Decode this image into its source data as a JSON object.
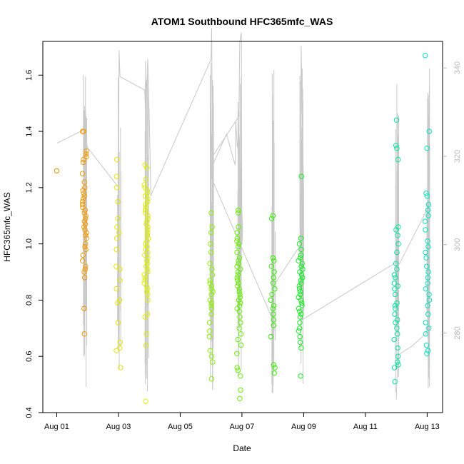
{
  "chart_data": {
    "type": "scatter",
    "title": "ATOM1 Southbound HFC365mfc_WAS",
    "xlabel": "Date",
    "ylabel": "HFC365mfc_WAS",
    "x_tick_labels": [
      "Aug 01",
      "Aug 03",
      "Aug 05",
      "Aug 07",
      "Aug 09",
      "Aug 11",
      "Aug 13"
    ],
    "x_tick_days": [
      1,
      3,
      5,
      7,
      9,
      11,
      13
    ],
    "xlim_days": [
      0.55,
      13.5
    ],
    "ylim": [
      0.4,
      1.72
    ],
    "y_ticks": [
      0.4,
      0.6,
      0.8,
      1.0,
      1.2,
      1.4,
      1.6
    ],
    "y_tick_labels": [
      "0.4",
      "0.6",
      "0.8",
      "1.0",
      "1.2",
      "1.4",
      "1.6"
    ],
    "y2lim": [
      262,
      346
    ],
    "y2_ticks": [
      280,
      300,
      320,
      340
    ],
    "y2_tick_labels": [
      "280",
      "300",
      "320",
      "340"
    ],
    "y2_color": "#bbbbbb",
    "line_color": "#c8c8c8",
    "grid": false,
    "legend": "none",
    "color_scale": "date, orange to cyan",
    "point_groups": [
      {
        "center_day": 1.0,
        "color": "#f08c00",
        "values": [
          1.26
        ]
      },
      {
        "center_day": 1.9,
        "color": "#f59a00",
        "values": [
          1.4,
          1.4,
          1.33,
          1.32,
          1.31,
          1.3,
          1.29,
          1.25,
          1.22,
          1.2,
          1.19,
          1.18,
          1.17,
          1.16,
          1.15,
          1.14,
          1.13,
          1.12,
          1.11,
          1.1,
          1.09,
          1.08,
          1.07,
          1.06,
          1.05,
          1.04,
          1.03,
          1.02,
          1.0,
          0.99,
          0.98,
          0.96,
          0.94,
          0.92,
          0.91,
          0.9,
          0.88,
          0.77,
          0.68
        ]
      },
      {
        "center_day": 3.0,
        "color": "#e6e600",
        "values": [
          1.3,
          1.24,
          1.2,
          1.15,
          1.09,
          1.06,
          1.04,
          1.02,
          0.98,
          0.92,
          0.91,
          0.87,
          0.84,
          0.8,
          0.79,
          0.72,
          0.65,
          0.63,
          0.62,
          0.56
        ]
      },
      {
        "center_day": 3.9,
        "color": "#e0f000",
        "values": [
          1.28,
          1.27,
          1.23,
          1.21,
          1.2,
          1.19,
          1.18,
          1.17,
          1.16,
          1.15,
          1.14,
          1.13,
          1.12,
          1.11,
          1.1,
          1.09,
          1.08,
          1.07,
          1.06,
          1.05,
          1.04,
          1.03,
          1.02,
          1.01,
          1.0,
          0.99,
          0.98,
          0.97,
          0.96,
          0.95,
          0.94,
          0.93,
          0.92,
          0.91,
          0.9,
          0.89,
          0.88,
          0.87,
          0.86,
          0.85,
          0.84,
          0.83,
          0.82,
          0.8,
          0.75,
          0.74,
          0.68,
          0.64,
          0.44
        ]
      },
      {
        "center_day": 6.0,
        "color": "#8cf000",
        "values": [
          1.11,
          1.06,
          1.04,
          1.0,
          0.97,
          0.93,
          0.91,
          0.89,
          0.87,
          0.86,
          0.85,
          0.84,
          0.83,
          0.82,
          0.8,
          0.79,
          0.78,
          0.77,
          0.75,
          0.72,
          0.69,
          0.67,
          0.62,
          0.6,
          0.58,
          0.52
        ]
      },
      {
        "center_day": 6.9,
        "color": "#66f000",
        "values": [
          1.12,
          1.11,
          1.06,
          1.04,
          1.02,
          1.01,
          1.0,
          0.99,
          0.97,
          0.95,
          0.94,
          0.93,
          0.92,
          0.91,
          0.9,
          0.89,
          0.88,
          0.87,
          0.86,
          0.85,
          0.84,
          0.83,
          0.82,
          0.81,
          0.8,
          0.79,
          0.78,
          0.77,
          0.76,
          0.74,
          0.72,
          0.7,
          0.68,
          0.66,
          0.64,
          0.61,
          0.56,
          0.55,
          0.53,
          0.48,
          0.45
        ]
      },
      {
        "center_day": 8.0,
        "color": "#33f000",
        "values": [
          1.1,
          1.09,
          0.95,
          0.94,
          0.92,
          0.9,
          0.88,
          0.86,
          0.84,
          0.82,
          0.8,
          0.78,
          0.77,
          0.75,
          0.73,
          0.71,
          0.67,
          0.57,
          0.56,
          0.54
        ]
      },
      {
        "center_day": 8.9,
        "color": "#10f020",
        "values": [
          1.24,
          1.02,
          1.0,
          0.98,
          0.96,
          0.95,
          0.94,
          0.93,
          0.92,
          0.91,
          0.9,
          0.89,
          0.88,
          0.87,
          0.86,
          0.85,
          0.84,
          0.83,
          0.82,
          0.81,
          0.8,
          0.79,
          0.78,
          0.77,
          0.76,
          0.75,
          0.74,
          0.72,
          0.7,
          0.69,
          0.67,
          0.65,
          0.63,
          0.53
        ]
      },
      {
        "center_day": 12.0,
        "color": "#00e6a0",
        "values": [
          1.44,
          1.35,
          1.34,
          1.3,
          1.06,
          1.05,
          1.03,
          1.0,
          0.97,
          0.93,
          0.91,
          0.89,
          0.88,
          0.86,
          0.85,
          0.84,
          0.82,
          0.79,
          0.78,
          0.77,
          0.75,
          0.73,
          0.72,
          0.7,
          0.68,
          0.66,
          0.63,
          0.6,
          0.58,
          0.57,
          0.56,
          0.51
        ]
      },
      {
        "center_day": 13.0,
        "color": "#00e6c0",
        "values": [
          1.67,
          1.4,
          1.34,
          1.18,
          1.17,
          1.14,
          1.12,
          1.1,
          1.08,
          1.05,
          1.01,
          0.99,
          0.97,
          0.95,
          0.92,
          0.9,
          0.88,
          0.86,
          0.84,
          0.82,
          0.8,
          0.78,
          0.75,
          0.72,
          0.7,
          0.68,
          0.64,
          0.62,
          0.61
        ]
      }
    ],
    "altitude_line": [
      [
        1.02,
        323
      ],
      [
        1.88,
        326
      ],
      [
        1.9,
        330
      ],
      [
        1.93,
        324
      ],
      [
        2.0,
        322
      ],
      [
        3.0,
        313
      ],
      [
        3.02,
        344
      ],
      [
        3.05,
        338
      ],
      [
        3.85,
        335
      ],
      [
        3.88,
        330
      ],
      [
        3.95,
        342
      ],
      [
        4.0,
        328
      ],
      [
        4.05,
        311
      ],
      [
        4.1,
        312
      ],
      [
        6.0,
        342
      ],
      [
        6.02,
        349
      ],
      [
        6.05,
        320
      ],
      [
        6.9,
        329
      ],
      [
        6.93,
        346
      ],
      [
        6.98,
        348
      ],
      [
        7.0,
        300
      ],
      [
        7.02,
        303
      ],
      [
        6.95,
        317
      ],
      [
        6.9,
        325
      ],
      [
        6.85,
        322
      ],
      [
        6.8,
        328
      ],
      [
        6.78,
        318
      ],
      [
        6.5,
        325
      ],
      [
        6.05,
        318
      ],
      [
        6.02,
        325
      ],
      [
        6.0,
        320
      ],
      [
        6.02,
        315
      ],
      [
        8.0,
        283
      ],
      [
        8.02,
        286
      ],
      [
        8.05,
        291
      ],
      [
        8.9,
        300
      ],
      [
        8.92,
        345
      ],
      [
        8.95,
        330
      ],
      [
        9.0,
        312
      ],
      [
        9.0,
        285
      ],
      [
        8.95,
        283
      ],
      [
        12.0,
        296
      ],
      [
        12.02,
        278
      ],
      [
        12.05,
        295
      ],
      [
        13.0,
        308
      ],
      [
        13.02,
        282
      ],
      [
        12.98,
        280
      ],
      [
        12.5,
        277
      ],
      [
        12.05,
        275
      ],
      [
        12.0,
        265
      ]
    ]
  }
}
